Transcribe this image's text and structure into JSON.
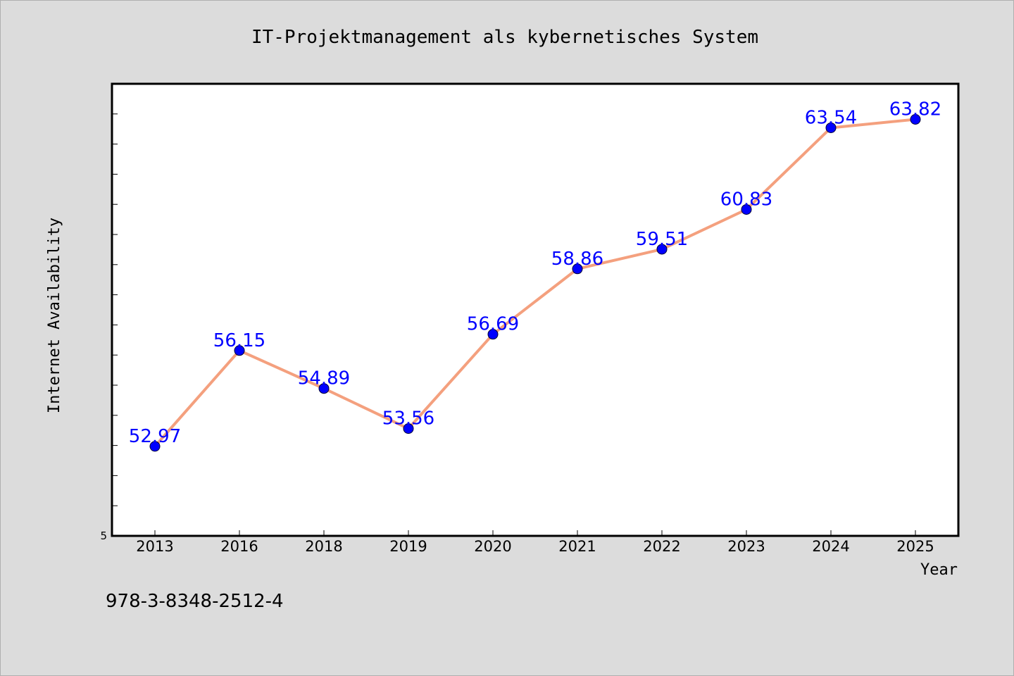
{
  "chart_data": {
    "type": "line",
    "title": "IT-Projektmanagement als kybernetisches System",
    "xlabel": "Year",
    "ylabel": "Internet Availability",
    "categories": [
      "2013",
      "2016",
      "2018",
      "2019",
      "2020",
      "2021",
      "2022",
      "2023",
      "2024",
      "2025"
    ],
    "series": [
      {
        "values": [
          52.97,
          56.15,
          54.89,
          53.56,
          56.69,
          58.86,
          59.51,
          60.83,
          63.54,
          63.82
        ],
        "data_labels": [
          "52.97",
          "56.15",
          "54.89",
          "53.56",
          "56.69",
          "58.86",
          "59.51",
          "60.83",
          "63.54",
          "63.82"
        ]
      }
    ],
    "ylim": [
      50,
      65
    ],
    "y_tick_labels": [
      "5"
    ],
    "grid": false,
    "legend": "none",
    "colors": {
      "line": "#f4a07e",
      "marker": "#0000ff",
      "data_label": "#0000ff",
      "background": "#dcdcdc",
      "plot_background": "#ffffff"
    }
  },
  "footer": {
    "isbn": "978-3-8348-2512-4"
  }
}
